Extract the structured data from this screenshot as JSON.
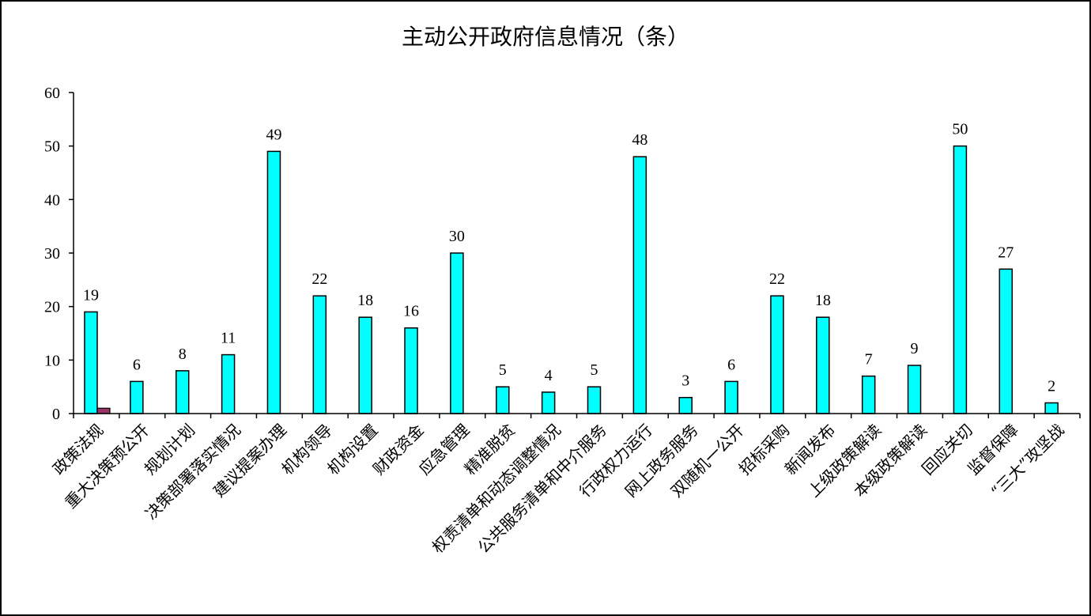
{
  "chart_data": {
    "type": "bar",
    "title": "主动公开政府信息情况（条）",
    "xlabel": "",
    "ylabel": "",
    "ylim": [
      0,
      60
    ],
    "yticks": [
      0,
      10,
      20,
      30,
      40,
      50,
      60
    ],
    "grid": false,
    "legend": "none",
    "categories": [
      "政策法规",
      "重大决策预公开",
      "规划计划",
      "决策部署落实情况",
      "建议提案办理",
      "机构领导",
      "机构设置",
      "财政资金",
      "应急管理",
      "精准脱贫",
      "权责清单和动态调整情况",
      "公共服务清单和中介服务",
      "行政权力运行",
      "网上政务服务",
      "双随机一公开",
      "招标采购",
      "新闻发布",
      "上级政策解读",
      "本级政策解读",
      "回应关切",
      "监督保障",
      "“三大”攻坚战"
    ],
    "series": [
      {
        "color": "#00FFFF",
        "values": [
          19,
          6,
          8,
          11,
          49,
          22,
          18,
          16,
          30,
          5,
          4,
          5,
          48,
          3,
          6,
          22,
          18,
          7,
          9,
          50,
          27,
          2
        ],
        "data_labels": [
          "19",
          "6",
          "8",
          "11",
          "49",
          "22",
          "18",
          "16",
          "30",
          "5",
          "4",
          "5",
          "48",
          "3",
          "6",
          "22",
          "18",
          "7",
          "9",
          "50",
          "27",
          "2"
        ]
      },
      {
        "color": "#993366",
        "values": [
          1,
          null,
          null,
          null,
          null,
          null,
          null,
          null,
          null,
          null,
          null,
          null,
          null,
          null,
          null,
          null,
          null,
          null,
          null,
          null,
          null,
          null
        ]
      }
    ]
  }
}
